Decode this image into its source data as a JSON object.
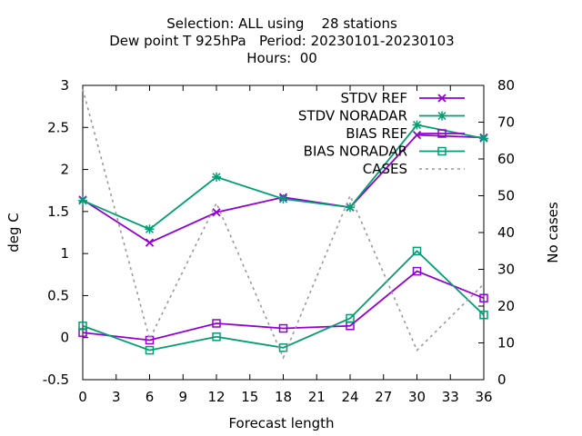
{
  "chart_data": {
    "type": "line",
    "title_lines": [
      "Selection: ALL using    28 stations",
      "Dew point T 925hPa   Period: 20230101-20230103",
      "Hours:  00"
    ],
    "xlabel": "Forecast length",
    "ylabel": "deg C",
    "y2label": "No cases",
    "xlim": [
      0,
      36
    ],
    "ylim": [
      -0.5,
      3
    ],
    "y2lim": [
      0,
      80
    ],
    "xticks": [
      "0",
      "3",
      "6",
      "9",
      "12",
      "15",
      "18",
      "21",
      "24",
      "27",
      "30",
      "33",
      "36"
    ],
    "yticks": [
      "-0.5",
      "0",
      "0.5",
      "1",
      "1.5",
      "2",
      "2.5",
      "3"
    ],
    "y2ticks": [
      "0",
      "10",
      "20",
      "30",
      "40",
      "50",
      "60",
      "70",
      "80"
    ],
    "grid": false,
    "legend_position": "top-right",
    "x": [
      0,
      6,
      12,
      18,
      24,
      30,
      36
    ],
    "series": [
      {
        "name": "STDV REF",
        "axis": "y1",
        "color": "#9400d3",
        "marker": "cross-x",
        "values": [
          1.64,
          1.13,
          1.49,
          1.67,
          1.55,
          2.41,
          2.38
        ]
      },
      {
        "name": "STDV NORADAR",
        "axis": "y1",
        "color": "#009e73",
        "marker": "star",
        "values": [
          1.63,
          1.29,
          1.91,
          1.65,
          1.55,
          2.53,
          2.37
        ]
      },
      {
        "name": "BIAS REF",
        "axis": "y1",
        "color": "#9400d3",
        "marker": "square",
        "values": [
          0.06,
          -0.03,
          0.17,
          0.11,
          0.14,
          0.79,
          0.47
        ]
      },
      {
        "name": "BIAS NORADAR",
        "axis": "y1",
        "color": "#009e73",
        "marker": "square",
        "values": [
          0.14,
          -0.15,
          0.01,
          -0.12,
          0.23,
          1.03,
          0.27
        ]
      },
      {
        "name": "CASES",
        "axis": "y2",
        "color": "#999999",
        "marker": "none",
        "dashed": true,
        "values": [
          79,
          11,
          48,
          6,
          50,
          8,
          26
        ]
      }
    ]
  }
}
